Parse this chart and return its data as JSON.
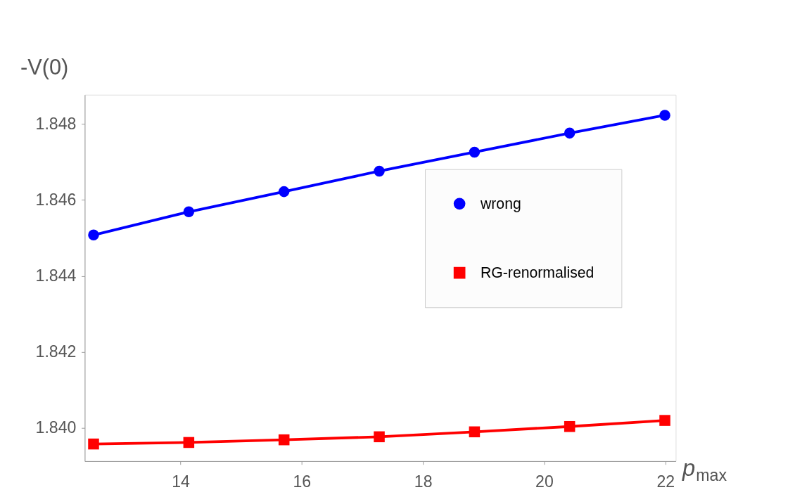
{
  "chart_data": {
    "type": "line",
    "xlabel": "p$_{max}$",
    "ylabel": "-V(0)",
    "x": [
      12.566,
      14.137,
      15.708,
      17.279,
      18.85,
      20.42,
      21.991
    ],
    "series": [
      {
        "name": "wrong",
        "color": "#0000ff",
        "marker": "circle",
        "values": [
          1.84508,
          1.84569,
          1.84622,
          1.84676,
          1.84726,
          1.84776,
          1.84823
        ]
      },
      {
        "name": "RG-renormalised",
        "color": "#ff0000",
        "marker": "square",
        "values": [
          1.83958,
          1.83962,
          1.83969,
          1.83977,
          1.8399,
          1.84004,
          1.8402
        ]
      }
    ],
    "xlim": [
      12.42,
      22.17
    ],
    "ylim": [
      1.83913,
      1.84877
    ],
    "xticks": [
      14,
      16,
      18,
      20,
      22
    ],
    "yticks": [
      {
        "value": 1.84,
        "label": "1.840"
      },
      {
        "value": 1.842,
        "label": "1.842"
      },
      {
        "value": 1.844,
        "label": "1.844"
      },
      {
        "value": 1.846,
        "label": "1.846"
      },
      {
        "value": 1.848,
        "label": "1.848"
      }
    ],
    "grid": false,
    "legend": "right",
    "line_style": "solid"
  }
}
